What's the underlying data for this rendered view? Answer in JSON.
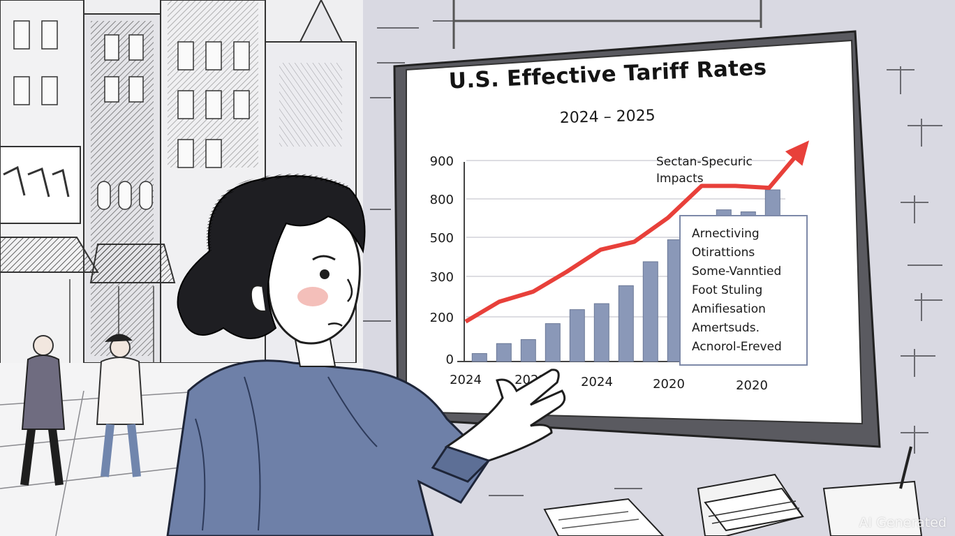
{
  "board": {
    "title": "U.S. Effective Tariff Rates",
    "subtitle": "2024 – 2025",
    "annotation": "Sectan-Specuric\nImpacts"
  },
  "legend_box": {
    "lines": [
      "Arnectiving",
      "Otirattions",
      "Some-Vanntied",
      "Foot Stuling",
      "Amifiesation",
      "Amertsuds.",
      "Acnorol-Ereved"
    ]
  },
  "watermark": "AI Generated",
  "colors": {
    "trend_line": "#e8403a",
    "bars": "#8a98b8",
    "jacket": "#6e80a8",
    "hair": "#1e1e22"
  },
  "chart_data": {
    "type": "bar",
    "title": "U.S. Effective Tariff Rates",
    "subtitle": "2024 – 2025",
    "y_ticks": [
      "900",
      "800",
      "500",
      "300",
      "200",
      "0"
    ],
    "x_tick_labels": [
      "2024",
      "2022",
      "2024",
      "2020",
      "2020"
    ],
    "bars": [
      {
        "value": 40
      },
      {
        "value": 90
      },
      {
        "value": 110
      },
      {
        "value": 190
      },
      {
        "value": 260
      },
      {
        "value": 290
      },
      {
        "value": 380
      },
      {
        "value": 500
      },
      {
        "value": 610
      },
      {
        "value": 720
      },
      {
        "value": 760
      },
      {
        "value": 750
      },
      {
        "value": 860
      }
    ],
    "trend_line": [
      {
        "value": 200
      },
      {
        "value": 300
      },
      {
        "value": 350
      },
      {
        "value": 450
      },
      {
        "value": 560
      },
      {
        "value": 600
      },
      {
        "value": 720
      },
      {
        "value": 880
      },
      {
        "value": 880
      },
      {
        "value": 870
      },
      {
        "value": 1070
      }
    ],
    "ylim": [
      0,
      1000
    ],
    "xlabel": "",
    "ylabel": ""
  }
}
